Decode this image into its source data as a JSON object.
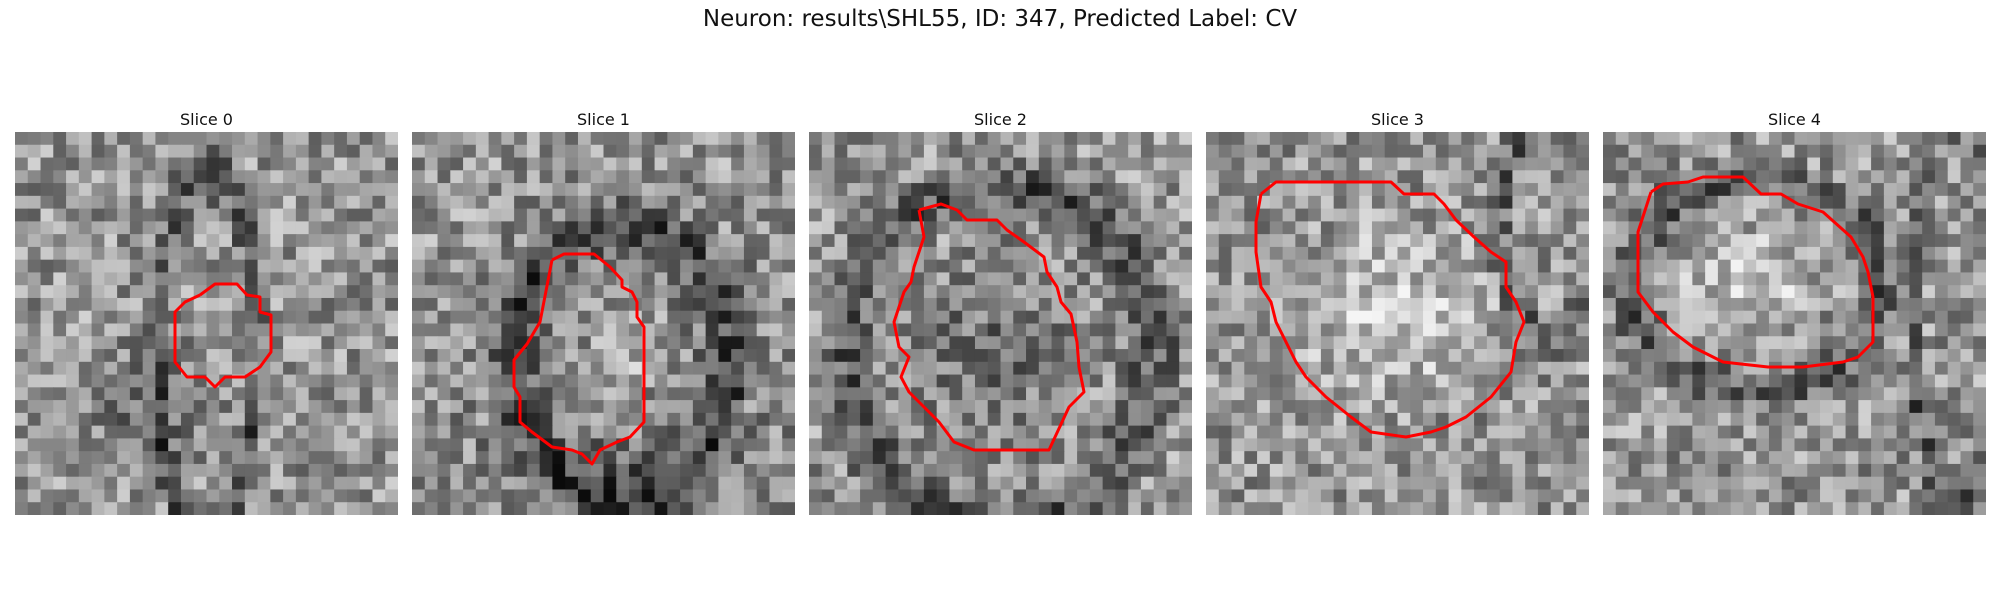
{
  "figure": {
    "suptitle": "Neuron: results\\SHL55, ID: 347, Predicted Label: CV"
  },
  "panels": [
    {
      "title": "Slice 0",
      "contour_color": "#ff0000"
    },
    {
      "title": "Slice 1",
      "contour_color": "#ff0000"
    },
    {
      "title": "Slice 2",
      "contour_color": "#ff0000"
    },
    {
      "title": "Slice 3",
      "contour_color": "#ff0000"
    },
    {
      "title": "Slice 4",
      "contour_color": "#ff0000"
    }
  ]
}
